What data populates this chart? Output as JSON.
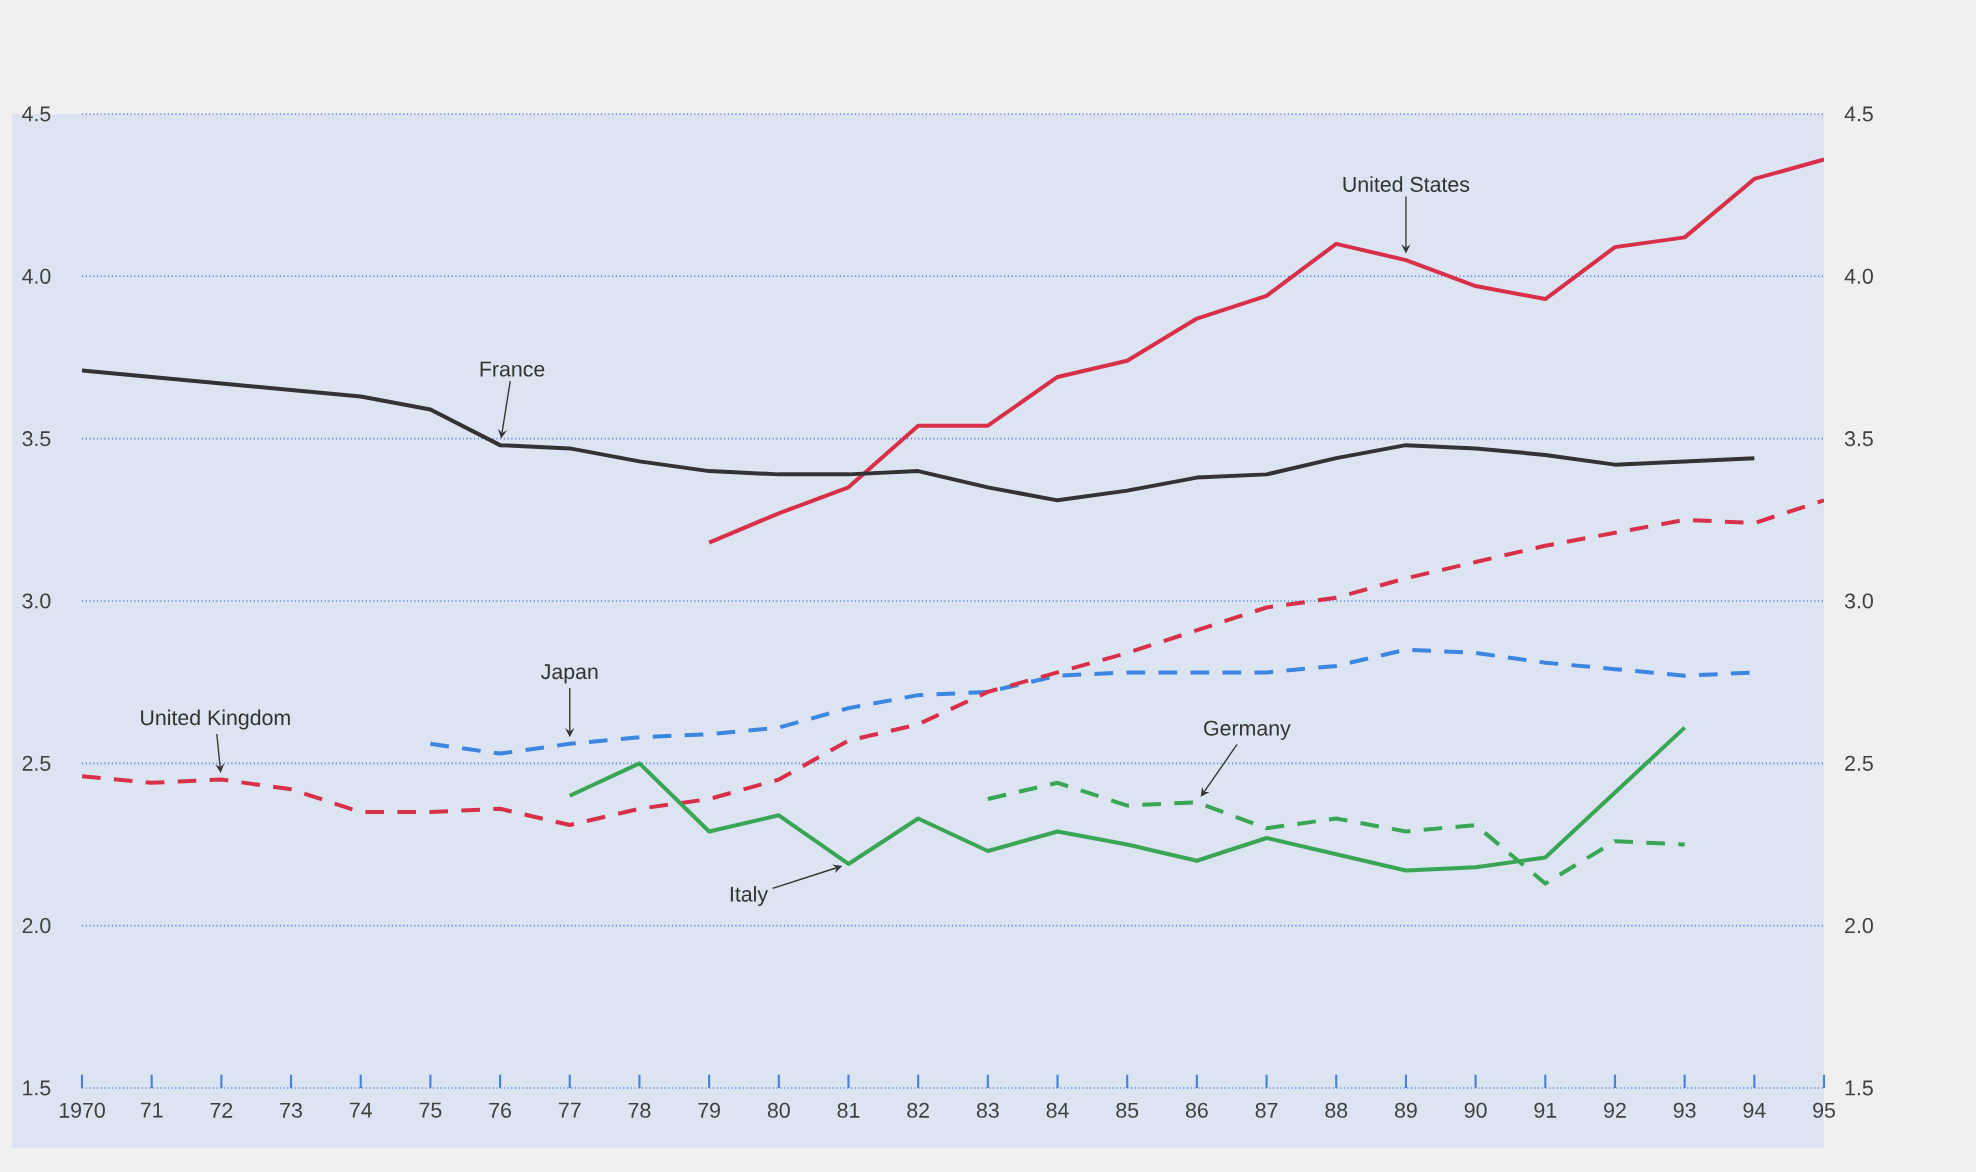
{
  "chart_data": {
    "type": "line",
    "x": [
      1970,
      1971,
      1972,
      1973,
      1974,
      1975,
      1976,
      1977,
      1978,
      1979,
      1980,
      1981,
      1982,
      1983,
      1984,
      1985,
      1986,
      1987,
      1988,
      1989,
      1990,
      1991,
      1992,
      1993,
      1994,
      1995
    ],
    "xlim": [
      1970,
      1995
    ],
    "xticks": [
      1970,
      {
        "value": 1971,
        "label": "71"
      },
      {
        "value": 1972,
        "label": "72"
      },
      {
        "value": 1973,
        "label": "73"
      },
      {
        "value": 1974,
        "label": "74"
      },
      {
        "value": 1975,
        "label": "75"
      },
      {
        "value": 1976,
        "label": "76"
      },
      {
        "value": 1977,
        "label": "77"
      },
      {
        "value": 1978,
        "label": "78"
      },
      {
        "value": 1979,
        "label": "79"
      },
      {
        "value": 1980,
        "label": "80"
      },
      {
        "value": 1981,
        "label": "81"
      },
      {
        "value": 1982,
        "label": "82"
      },
      {
        "value": 1983,
        "label": "83"
      },
      {
        "value": 1984,
        "label": "84"
      },
      {
        "value": 1985,
        "label": "85"
      },
      {
        "value": 1986,
        "label": "86"
      },
      {
        "value": 1987,
        "label": "87"
      },
      {
        "value": 1988,
        "label": "88"
      },
      {
        "value": 1989,
        "label": "89"
      },
      {
        "value": 1990,
        "label": "90"
      },
      {
        "value": 1991,
        "label": "91"
      },
      {
        "value": 1992,
        "label": "92"
      },
      {
        "value": 1993,
        "label": "93"
      },
      {
        "value": 1994,
        "label": "94"
      },
      {
        "value": 1995,
        "label": "95"
      }
    ],
    "ylim": [
      1.5,
      4.5
    ],
    "yticks": [
      {
        "value": 1.5,
        "label": "1.5"
      },
      {
        "value": 2.0,
        "label": "2.0"
      },
      {
        "value": 2.5,
        "label": "2.5"
      },
      {
        "value": 3.0,
        "label": "3.0"
      },
      {
        "value": 3.5,
        "label": "3.5"
      },
      {
        "value": 4.0,
        "label": "4.0"
      },
      {
        "value": 4.5,
        "label": "4.5"
      }
    ],
    "y2lim": [
      1.5,
      4.5
    ],
    "y2ticks": [
      {
        "value": 1.5,
        "label": "1.5"
      },
      {
        "value": 2.0,
        "label": "2.0"
      },
      {
        "value": 2.5,
        "label": "2.5"
      },
      {
        "value": 3.0,
        "label": "3.0"
      },
      {
        "value": 3.5,
        "label": "3.5"
      },
      {
        "value": 4.0,
        "label": "4.0"
      },
      {
        "value": 4.5,
        "label": "4.5"
      }
    ],
    "grid": "y",
    "marker": "none",
    "series": [
      {
        "name": "United States",
        "color": "#d9304a",
        "line_style": "solid",
        "values": [
          null,
          null,
          null,
          null,
          null,
          null,
          null,
          null,
          null,
          3.18,
          3.27,
          3.35,
          3.54,
          3.54,
          3.69,
          3.74,
          3.87,
          3.94,
          4.1,
          4.05,
          3.97,
          3.93,
          4.09,
          4.12,
          4.3,
          4.36
        ]
      },
      {
        "name": "France",
        "color": "#333333",
        "line_style": "solid",
        "values": [
          3.71,
          3.69,
          3.67,
          3.65,
          3.63,
          3.59,
          3.48,
          3.47,
          3.43,
          3.4,
          3.39,
          3.39,
          3.4,
          3.35,
          3.31,
          3.34,
          3.38,
          3.39,
          3.44,
          3.48,
          3.47,
          3.45,
          3.42,
          3.43,
          3.44,
          null
        ]
      },
      {
        "name": "Japan",
        "color": "#3a86e0",
        "line_style": "dashed",
        "values": [
          null,
          null,
          null,
          null,
          null,
          2.56,
          2.53,
          2.56,
          2.58,
          2.59,
          2.61,
          2.67,
          2.71,
          2.72,
          2.77,
          2.78,
          2.78,
          2.78,
          2.8,
          2.85,
          2.84,
          2.81,
          2.79,
          2.77,
          2.78,
          null
        ]
      },
      {
        "name": "United Kingdom",
        "color": "#d9304a",
        "line_style": "dashed",
        "values": [
          2.46,
          2.44,
          2.45,
          2.42,
          2.35,
          2.35,
          2.36,
          2.31,
          2.36,
          2.39,
          2.45,
          2.57,
          2.62,
          2.72,
          2.78,
          2.84,
          2.91,
          2.98,
          3.01,
          3.07,
          3.12,
          3.17,
          3.21,
          3.25,
          3.24,
          3.31
        ]
      },
      {
        "name": "Italy",
        "color": "#3aa655",
        "line_style": "solid",
        "values": [
          null,
          null,
          null,
          null,
          null,
          null,
          null,
          2.4,
          2.5,
          2.29,
          2.34,
          2.19,
          2.33,
          2.23,
          2.29,
          2.25,
          2.2,
          2.27,
          2.22,
          2.17,
          2.18,
          2.21,
          2.41,
          2.61,
          null,
          null
        ]
      },
      {
        "name": "Germany",
        "color": "#3aa655",
        "line_style": "dashed",
        "values": [
          null,
          null,
          null,
          null,
          null,
          null,
          null,
          null,
          null,
          null,
          null,
          null,
          null,
          2.39,
          2.44,
          2.37,
          2.38,
          2.3,
          2.33,
          2.29,
          2.31,
          2.13,
          2.26,
          2.25,
          null,
          null
        ]
      }
    ]
  }
}
